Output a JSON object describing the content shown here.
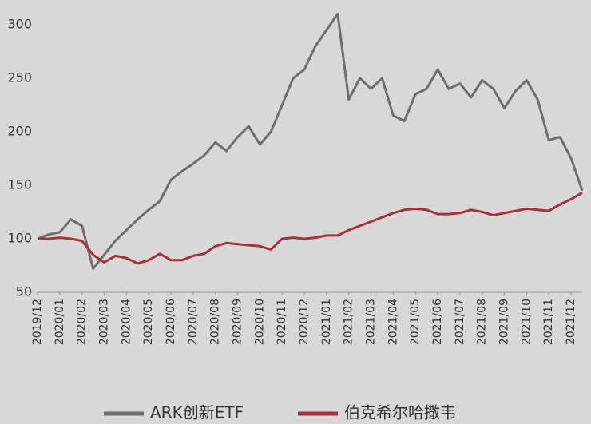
{
  "chart_data": {
    "type": "line",
    "categories": [
      "2019/12",
      null,
      "2020/01",
      null,
      "2020/02",
      null,
      "2020/03",
      null,
      "2020/04",
      null,
      "2020/05",
      null,
      "2020/06",
      null,
      "2020/07",
      null,
      "2020/08",
      null,
      "2020/09",
      null,
      "2020/10",
      null,
      "2020/11",
      null,
      "2020/12",
      null,
      "2021/01",
      null,
      "2021/02",
      null,
      "2021/03",
      null,
      "2021/04",
      null,
      "2021/05",
      null,
      "2021/06",
      null,
      "2021/07",
      null,
      "2021/08",
      null,
      "2021/09",
      null,
      "2021/10",
      null,
      "2021/11",
      null,
      "2021/12",
      null
    ],
    "series": [
      {
        "name": "ARK创新ETF",
        "color": "#6e6e6e",
        "values": [
          100,
          104,
          106,
          118,
          112,
          72,
          85,
          98,
          108,
          118,
          127,
          135,
          155,
          163,
          170,
          178,
          190,
          182,
          195,
          205,
          188,
          200,
          225,
          250,
          258,
          280,
          295,
          310,
          230,
          250,
          240,
          250,
          215,
          210,
          235,
          240,
          258,
          240,
          245,
          232,
          248,
          240,
          222,
          238,
          248,
          230,
          192,
          195,
          175,
          145
        ]
      },
      {
        "name": "伯克希尔哈撒韦",
        "color": "#a83236",
        "values": [
          100,
          100,
          101,
          100,
          98,
          85,
          78,
          84,
          82,
          77,
          80,
          86,
          80,
          80,
          84,
          86,
          93,
          96,
          95,
          94,
          93,
          90,
          100,
          101,
          100,
          101,
          103,
          103,
          108,
          112,
          116,
          120,
          124,
          127,
          128,
          127,
          123,
          123,
          124,
          127,
          125,
          122,
          124,
          126,
          128,
          127,
          126,
          132,
          137,
          143
        ]
      }
    ],
    "ylim": [
      50,
      320
    ],
    "yticks": [
      50,
      100,
      150,
      200,
      250,
      300
    ],
    "grid": false
  }
}
